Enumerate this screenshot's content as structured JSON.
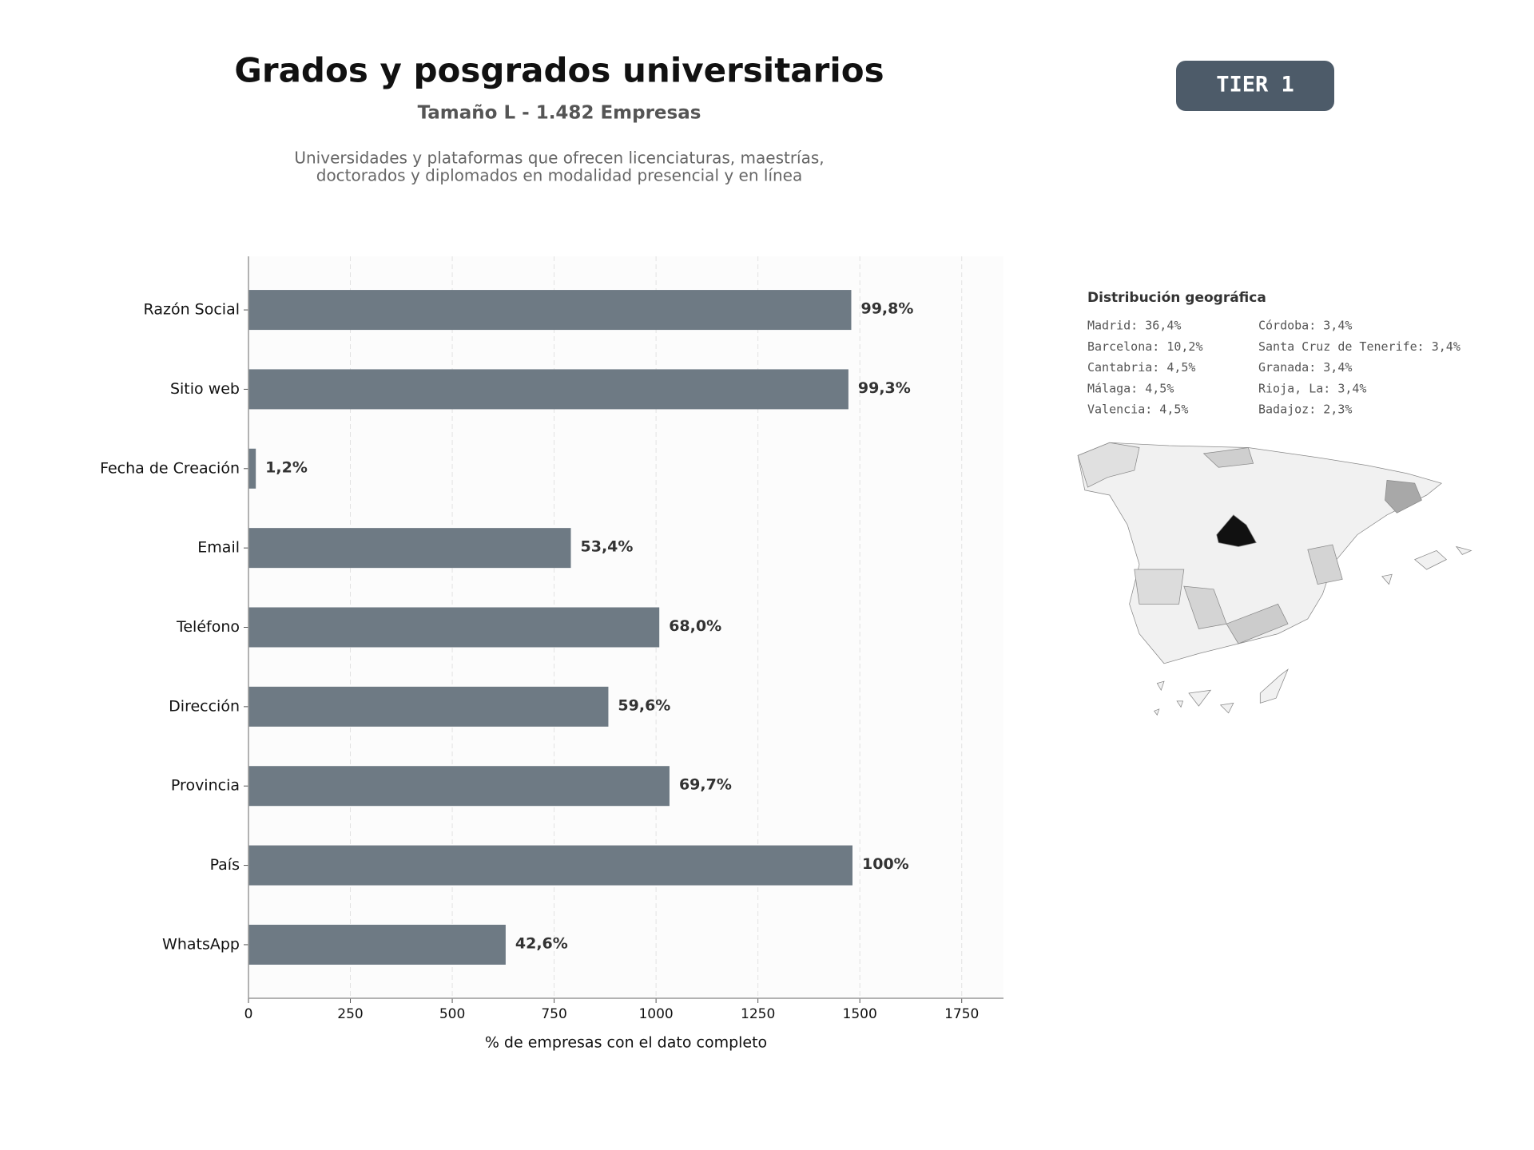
{
  "header": {
    "title": "Grados y posgrados universitarios",
    "subtitle": "Tamaño L - 1.482 Empresas",
    "description": [
      "Universidades y plataformas que ofrecen licenciaturas, maestrías,",
      "doctorados y diplomados en modalidad presencial y en línea"
    ]
  },
  "badge": "TIER 1",
  "geo": {
    "title": "Distribución geográfica",
    "items": [
      "Madrid: 36,4%",
      "Barcelona: 10,2%",
      "Cantabria: 4,5%",
      "Málaga: 4,5%",
      "Valencia: 4,5%",
      "Córdoba: 3,4%",
      "Santa Cruz de Tenerife: 3,4%",
      "Granada: 3,4%",
      "Rioja, La: 3,4%",
      "Badajoz: 2,3%"
    ]
  },
  "chart_data": {
    "type": "bar",
    "orientation": "horizontal",
    "xlabel": "% de empresas con el dato completo",
    "categories": [
      "Razón Social",
      "Sitio web",
      "Fecha de Creación",
      "Email",
      "Teléfono",
      "Dirección",
      "Provincia",
      "País",
      "WhatsApp"
    ],
    "values": [
      1479,
      1472,
      18,
      791,
      1008,
      883,
      1033,
      1482,
      631
    ],
    "value_labels": [
      "99,8%",
      "99,3%",
      "1,2%",
      "53,4%",
      "68,0%",
      "59,6%",
      "69,7%",
      "100%",
      "42,6%"
    ],
    "color": "#6e7a84",
    "xlim": [
      0,
      1852.5
    ],
    "xticks": [
      0,
      250,
      500,
      750,
      1000,
      1250,
      1500,
      1750
    ],
    "grid": true
  }
}
